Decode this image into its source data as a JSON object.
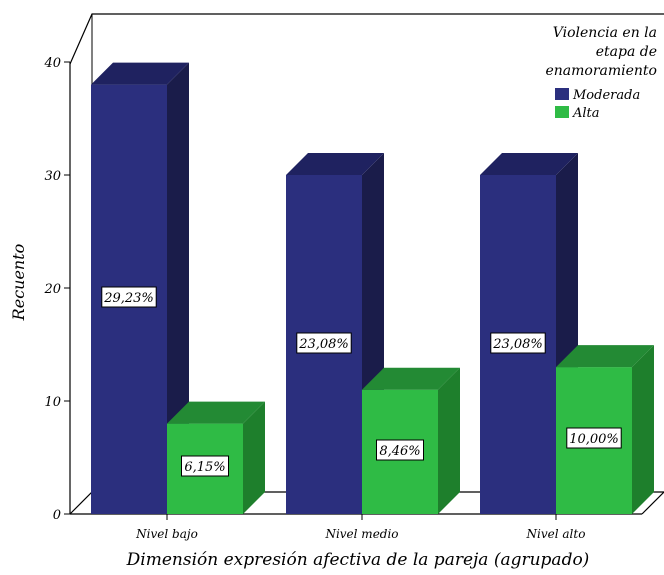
{
  "chart_data": {
    "type": "bar",
    "categories": [
      "Nivel bajo",
      "Nivel medio",
      "Nivel alto"
    ],
    "series": [
      {
        "name": "Moderada",
        "values": [
          38,
          30,
          30
        ],
        "labels": [
          "29,23%",
          "23,08%",
          "23,08%"
        ]
      },
      {
        "name": "Alta",
        "values": [
          8,
          11,
          13
        ],
        "labels": [
          "6,15%",
          "8,46%",
          "10,00%"
        ]
      }
    ],
    "xlabel": "Dimensión expresión afectiva de la pareja (agrupado)",
    "ylabel": "Recuento",
    "ylim": [
      0,
      40
    ],
    "yticks": [
      "0",
      "10",
      "20",
      "30",
      "40"
    ],
    "legend": {
      "title_lines": [
        "Violencia en la",
        "etapa de",
        "enamoramiento"
      ],
      "position": "top-right"
    },
    "colors": {
      "Moderada": {
        "front": "#2b2f7e",
        "side": "#1a1c4a",
        "top": "#1f2260"
      },
      "Alta": {
        "front": "#2fbb45",
        "side": "#1e7f2c",
        "top": "#238a34"
      }
    },
    "grid": false,
    "style": "3d"
  }
}
